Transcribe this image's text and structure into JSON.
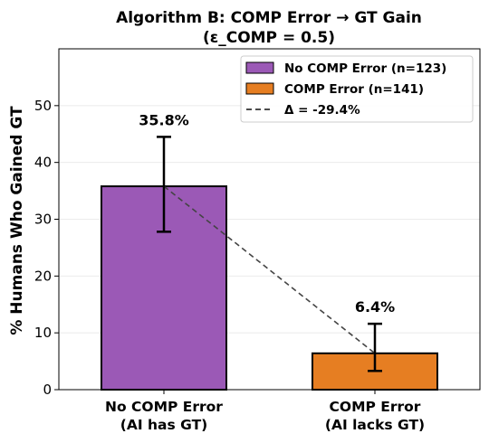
{
  "chart_data": {
    "type": "bar",
    "title_line1": "Algorithm B: COMP Error → GT Gain",
    "title_line2": "(ε_COMP = 0.5)",
    "ylabel": "% Humans Who Gained GT",
    "xlabel": "",
    "ylim": [
      0,
      60
    ],
    "yticks": [
      0,
      10,
      20,
      30,
      40,
      50
    ],
    "grid": true,
    "legend_position": "top-right",
    "categories": [
      [
        "No COMP Error",
        "(AI has GT)"
      ],
      [
        "COMP Error",
        "(AI lacks GT)"
      ]
    ],
    "values": [
      35.8,
      6.4
    ],
    "value_labels": [
      "35.8%",
      "6.4%"
    ],
    "error_bars": [
      [
        27.8,
        44.5
      ],
      [
        3.3,
        11.6
      ]
    ],
    "colors": [
      "#9b59b6",
      "#e67e22"
    ],
    "legend": [
      {
        "label": "No COMP Error (n=123)",
        "color": "#9b59b6",
        "kind": "patch"
      },
      {
        "label": "COMP Error (n=141)",
        "color": "#e67e22",
        "kind": "patch"
      },
      {
        "label": "Δ = -29.4%",
        "color": "#333333",
        "kind": "dashed-line"
      }
    ]
  }
}
